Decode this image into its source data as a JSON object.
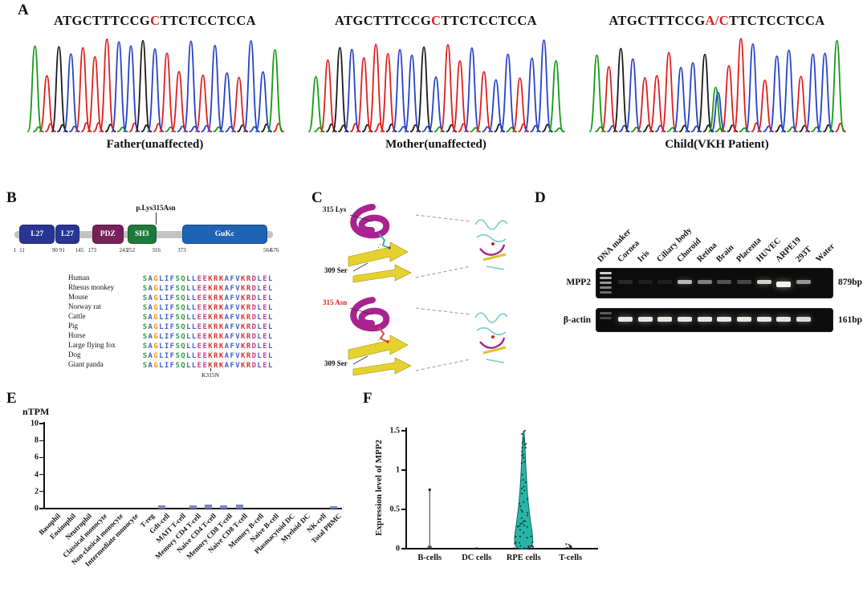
{
  "panels": {
    "a": {
      "label": "A",
      "base_colors": {
        "A": "#159b15",
        "C": "#2742c8",
        "G": "#1a1a1a",
        "T": "#e01f1f"
      },
      "chromatograms": [
        {
          "seq_prefix": "ATGCTTTCCG",
          "seq_highlight": "C",
          "seq_suffix": "TTCTCCTCCA",
          "trace": "ATGCTTTCCGCTTCTCCTCCA",
          "hetero_index": -1,
          "caption": "Father(unaffected)"
        },
        {
          "seq_prefix": "ATGCTTTCCG",
          "seq_highlight": "C",
          "seq_suffix": "TTCTCCTCCA",
          "trace": "ATGCTTTCCGCTTCTCCTCCA",
          "hetero_index": -1,
          "caption": "Mother(unaffected)"
        },
        {
          "seq_prefix": "ATGCTTTCCG",
          "seq_highlight": "A/C",
          "seq_suffix": "TTCTCCTCCA",
          "trace": "ATGCTTTCCGCTTCTCCTCCA",
          "hetero_index": 10,
          "caption": "Child(VKH Patient)"
        }
      ]
    },
    "b": {
      "label": "B",
      "mutation_label": "p.Lys315Asn",
      "protein_length": 576,
      "domains": [
        {
          "name": "L27",
          "start": 11,
          "end": 90,
          "color": "#283593"
        },
        {
          "name": "L27",
          "start": 91,
          "end": 145,
          "color": "#283593"
        },
        {
          "name": "PDZ",
          "start": 173,
          "end": 243,
          "color": "#77225a"
        },
        {
          "name": "SH3",
          "start": 252,
          "end": 316,
          "color": "#1d7a3a"
        },
        {
          "name": "GuKc",
          "start": 373,
          "end": 564,
          "color": "#1e63b4"
        }
      ],
      "ticks": [
        1,
        11,
        90,
        91,
        145,
        173,
        243,
        252,
        316,
        373,
        564,
        576
      ],
      "alignment": {
        "species": [
          "Human",
          "Rhesus monkey",
          "Mouse",
          "Norway rat",
          "Cattle",
          "Pig",
          "Horse",
          "Large flying fox",
          "Dog",
          "Giant panda"
        ],
        "sequence": "SAGLIFSQLLEEKRKAFVKRDLEL",
        "footer_label": "K315N",
        "residue_colors": {
          "S": "#2f9e44",
          "A": "#4263c7",
          "G": "#e8930c",
          "L": "#4263c7",
          "I": "#4263c7",
          "F": "#4263c7",
          "Q": "#2f9e44",
          "E": "#c2418f",
          "K": "#d6342c",
          "R": "#d6342c",
          "V": "#4263c7",
          "D": "#c2418f"
        }
      }
    },
    "c": {
      "label": "C",
      "structures": [
        {
          "residue_top": "315 Lys",
          "residue_top_color": "#111111",
          "residue_bottom": "309 Ser"
        },
        {
          "residue_top": "315 Asn",
          "residue_top_color": "#e01f1f",
          "residue_bottom": "309 Ser"
        }
      ]
    },
    "d": {
      "label": "D",
      "lanes": [
        "DNA maker",
        "Cornea",
        "Iris",
        "Ciliary body",
        "Choroid",
        "Retina",
        "Brain",
        "Placenta",
        "HUVEC",
        "ARPE19",
        "293T",
        "Water"
      ],
      "rows": [
        {
          "name": "MPP2",
          "size": "879bp",
          "ladder": [
            0.85,
            0.7,
            0.6,
            0.5,
            0.4
          ],
          "bands": [
            0.12,
            0.08,
            0.08,
            0.75,
            0.5,
            0.3,
            0.25,
            0.85,
            1.0,
            0.6,
            0
          ]
        },
        {
          "name": "β-actin",
          "size": "161bp",
          "ladder": [
            0.35,
            0.25
          ],
          "bands": [
            0.95,
            0.95,
            0.95,
            0.95,
            0.95,
            0.95,
            0.95,
            0.95,
            0.95,
            0.9,
            0
          ]
        }
      ]
    },
    "e": {
      "label": "E"
    },
    "f": {
      "label": "F"
    }
  },
  "chart_data": [
    {
      "type": "bar",
      "title": "",
      "ylabel": "nTPM",
      "ylim": [
        0,
        10
      ],
      "yticks": [
        0,
        2,
        4,
        6,
        8,
        10
      ],
      "grid": false,
      "legend": "none",
      "bar_color": "#7b86c7",
      "categories": [
        "Basophil",
        "Eosinophil",
        "Neutrophil",
        "Classical monocyte",
        "Non-clasical monocyte",
        "Intermediate monocyte",
        "T-reg",
        "Gdt-cell",
        "MAIT T-cell",
        "Memory CD4 T-cell",
        "Naive CD4 T-cell",
        "Memory CD8 T-cell",
        "Naive CD8 T-cell",
        "Memory B-cell",
        "Naive B-cell",
        "Plasmacytoid DC",
        "Myeloid DC",
        "NK-cell",
        "Total PBMC"
      ],
      "values": [
        0,
        0,
        0,
        0,
        0,
        0,
        0,
        0.4,
        0,
        0.35,
        0.45,
        0.35,
        0.45,
        0,
        0,
        0,
        0,
        0,
        0.3
      ]
    },
    {
      "type": "violin",
      "title": "",
      "ylabel": "Expression level of MPP2",
      "ylim": [
        0,
        1.5
      ],
      "yticks": [
        0,
        0.5,
        1,
        1.5
      ],
      "grid": false,
      "legend": "none",
      "categories": [
        "B-cells",
        "DC cells",
        "RPE cells",
        "T-cells"
      ],
      "series": [
        {
          "name": "B-cells",
          "shape": "stem",
          "max": 0.75,
          "n_points": 2
        },
        {
          "name": "DC cells",
          "shape": "none",
          "max": 0,
          "n_points": 1
        },
        {
          "name": "RPE cells",
          "shape": "violin",
          "max": 1.5,
          "color": "#28b5a8",
          "outline": "#0e6b63",
          "n_points": 60,
          "width_profile": [
            [
              1.5,
              0.5
            ],
            [
              1.35,
              1.5
            ],
            [
              1.1,
              2.5
            ],
            [
              0.85,
              3.8
            ],
            [
              0.6,
              5.5
            ],
            [
              0.35,
              8.5
            ],
            [
              0.15,
              11.5
            ],
            [
              0.05,
              11
            ],
            [
              0,
              7.5
            ]
          ]
        },
        {
          "name": "T-cells",
          "shape": "points",
          "max": 0.06,
          "n_points": 9
        }
      ]
    }
  ]
}
